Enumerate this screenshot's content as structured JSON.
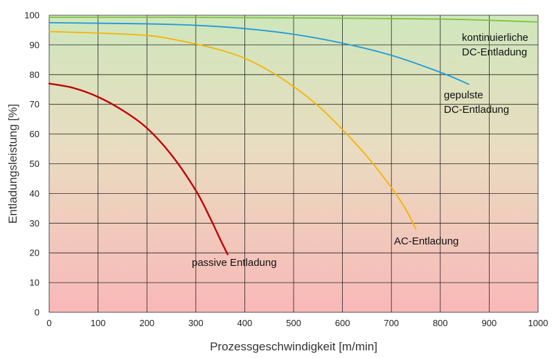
{
  "chart_data": {
    "type": "line",
    "xlabel": "Prozessgeschwindigkeit [m/min]",
    "ylabel": "Entladungsleistung [%]",
    "xlim": [
      0,
      1000
    ],
    "ylim": [
      0,
      100
    ],
    "x_ticks": [
      0,
      100,
      200,
      300,
      400,
      500,
      600,
      700,
      800,
      900,
      1000
    ],
    "y_ticks": [
      0,
      10,
      20,
      30,
      40,
      50,
      60,
      70,
      80,
      90,
      100
    ],
    "grid": true,
    "background": "vertical gradient green (top) to red (bottom)",
    "series": [
      {
        "name": "kontinuierliche DC-Entladung",
        "label_lines": [
          "kontinuierliche",
          "DC-Entladung"
        ],
        "color": "#7dc242",
        "x": [
          0,
          200,
          400,
          600,
          800,
          900,
          1000
        ],
        "y": [
          99.3,
          99.3,
          99.2,
          99.0,
          98.7,
          98.3,
          97.7
        ]
      },
      {
        "name": "gepulste DC-Entladung",
        "label_lines": [
          "gepulste",
          "DC-Entladung"
        ],
        "color": "#1e9ad6",
        "x": [
          0,
          100,
          200,
          300,
          400,
          500,
          600,
          700,
          800,
          858
        ],
        "y": [
          97.5,
          97.3,
          97.1,
          96.6,
          95.5,
          93.6,
          90.6,
          86.5,
          80.8,
          76.8
        ]
      },
      {
        "name": "AC-Entladung",
        "label_lines": [
          "AC-Entladung"
        ],
        "color": "#f4b400",
        "x": [
          0,
          100,
          200,
          250,
          300,
          350,
          400,
          450,
          500,
          550,
          600,
          650,
          700,
          730,
          750
        ],
        "y": [
          94.5,
          94.0,
          93.2,
          92.0,
          90.3,
          88.3,
          85.5,
          81.3,
          76.0,
          69.5,
          61.5,
          52.5,
          42.0,
          34.5,
          28.0
        ]
      },
      {
        "name": "passive Entladung",
        "label_lines": [
          "passive Entladung"
        ],
        "color": "#c00000",
        "x": [
          0,
          50,
          100,
          150,
          200,
          250,
          300,
          330,
          350,
          365
        ],
        "y": [
          77.0,
          75.5,
          72.5,
          68.0,
          62.0,
          53.0,
          41.0,
          31.5,
          24.5,
          19.5
        ]
      }
    ]
  }
}
